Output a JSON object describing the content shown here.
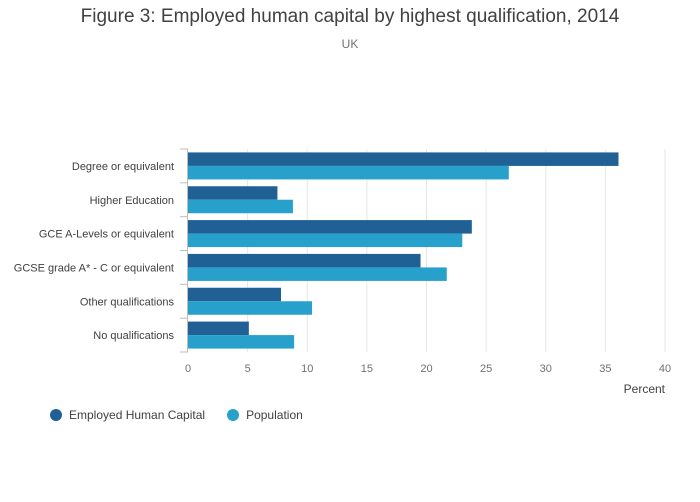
{
  "chart_data": {
    "type": "bar",
    "orientation": "horizontal",
    "title": "Figure 3: Employed human capital by highest qualification, 2014",
    "subtitle": "UK",
    "xlabel": "Percent",
    "ylabel": "",
    "xlim": [
      0,
      40
    ],
    "xticks": [
      0,
      5,
      10,
      15,
      20,
      25,
      30,
      35,
      40
    ],
    "grid": true,
    "legend_position": "bottom-left",
    "categories": [
      "Degree or equivalent",
      "Higher Education",
      "GCE A-Levels or equivalent",
      "GCSE grade A* - C or equivalent",
      "Other qualifications",
      "No qualifications"
    ],
    "series": [
      {
        "name": "Employed Human Capital",
        "color": "#206095",
        "values": [
          36.1,
          7.5,
          23.8,
          19.5,
          7.8,
          5.1
        ]
      },
      {
        "name": "Population",
        "color": "#27A0CC",
        "values": [
          26.9,
          8.8,
          23.0,
          21.7,
          10.4,
          8.9
        ]
      }
    ]
  }
}
